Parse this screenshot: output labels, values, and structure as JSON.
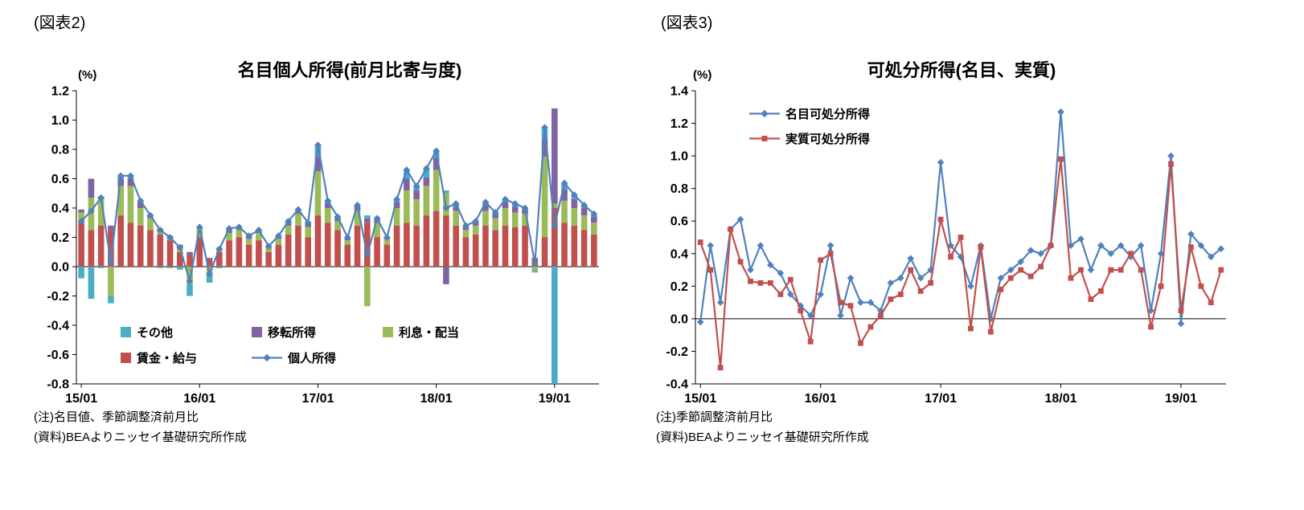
{
  "figure2": {
    "tag": "(図表2)",
    "title": "名目個人所得(前月比寄与度)",
    "unit": "(%)",
    "legend": {
      "row1": [
        {
          "id": "other",
          "label": "その他",
          "color": "#4BACC6",
          "marker": "square"
        },
        {
          "id": "transfer",
          "label": "移転所得",
          "color": "#8064A2",
          "marker": "square"
        },
        {
          "id": "interest-dividends",
          "label": "利息・配当",
          "color": "#9BBB59",
          "marker": "square"
        }
      ],
      "row2": [
        {
          "id": "wages",
          "label": "賃金・給与",
          "color": "#C0504D",
          "marker": "square"
        },
        {
          "id": "personal-income",
          "label": "個人所得",
          "color": "#4F81BD",
          "marker": "line-diamond"
        }
      ]
    },
    "notes": [
      "(注)名目値、季節調整済前月比",
      "(資料)BEAよりニッセイ基礎研究所作成"
    ]
  },
  "figure3": {
    "tag": "(図表3)",
    "title": "可処分所得(名目、実質)",
    "unit": "(%)",
    "legend": [
      {
        "id": "nominal-disposable-income",
        "label": "名目可処分所得",
        "color": "#4F81BD",
        "marker": "line-diamond"
      },
      {
        "id": "real-disposable-income",
        "label": "実質可処分所得",
        "color": "#C0504D",
        "marker": "line-square"
      }
    ],
    "notes": [
      "(注)季節調整済前月比",
      "(資料)BEAよりニッセイ基礎研究所作成"
    ]
  },
  "chart_data": [
    {
      "type": "bar",
      "subtype": "stacked-bars-with-line",
      "title": "名目個人所得(前月比寄与度)",
      "ylabel": "(%)",
      "ylim": [
        -0.8,
        1.2
      ],
      "ytick_step": 0.2,
      "grid": false,
      "legend_position": "inside-bottom-left",
      "categories": [
        "15/01",
        "15/02",
        "15/03",
        "15/04",
        "15/05",
        "15/06",
        "15/07",
        "15/08",
        "15/09",
        "15/10",
        "15/11",
        "15/12",
        "16/01",
        "16/02",
        "16/03",
        "16/04",
        "16/05",
        "16/06",
        "16/07",
        "16/08",
        "16/09",
        "16/10",
        "16/11",
        "16/12",
        "17/01",
        "17/02",
        "17/03",
        "17/04",
        "17/05",
        "17/06",
        "17/07",
        "17/08",
        "17/09",
        "17/10",
        "17/11",
        "17/12",
        "18/01",
        "18/02",
        "18/03",
        "18/04",
        "18/05",
        "18/06",
        "18/07",
        "18/08",
        "18/09",
        "18/10",
        "18/11",
        "18/12",
        "19/01",
        "19/02",
        "19/03",
        "19/04",
        "19/05"
      ],
      "xticks": [
        "15/01",
        "16/01",
        "17/01",
        "18/01",
        "19/01"
      ],
      "series": [
        {
          "name": "賃金・給与",
          "type": "bar",
          "color": "#C0504D",
          "values": [
            0.3,
            0.25,
            0.28,
            0.25,
            0.35,
            0.3,
            0.28,
            0.25,
            0.22,
            0.18,
            0.1,
            0.08,
            0.2,
            0.05,
            0.1,
            0.18,
            0.2,
            0.15,
            0.18,
            0.1,
            0.15,
            0.22,
            0.28,
            0.2,
            0.35,
            0.3,
            0.25,
            0.15,
            0.28,
            0.3,
            0.2,
            0.15,
            0.28,
            0.3,
            0.28,
            0.35,
            0.38,
            0.35,
            0.28,
            0.2,
            0.22,
            0.28,
            0.25,
            0.28,
            0.27,
            0.28,
            0.05,
            0.2,
            0.4,
            0.3,
            0.28,
            0.25,
            0.22
          ]
        },
        {
          "name": "利息・配当",
          "type": "bar",
          "color": "#9BBB59",
          "values": [
            0.07,
            0.22,
            0.18,
            -0.2,
            0.2,
            0.25,
            0.12,
            0.08,
            0.02,
            0.01,
            0.03,
            -0.12,
            0.06,
            -0.05,
            0.02,
            0.05,
            0.05,
            0.04,
            0.05,
            0.03,
            0.04,
            0.06,
            0.08,
            0.07,
            0.3,
            0.1,
            0.06,
            0.03,
            0.1,
            -0.27,
            0.1,
            0.04,
            0.12,
            0.22,
            0.18,
            0.2,
            0.28,
            0.15,
            0.1,
            0.05,
            0.06,
            0.1,
            0.08,
            0.12,
            0.1,
            0.08,
            -0.03,
            0.55,
            0.03,
            0.15,
            0.12,
            0.1,
            0.08
          ]
        },
        {
          "name": "移転所得",
          "type": "bar",
          "color": "#8064A2",
          "values": [
            0.02,
            0.13,
            0.02,
            0.03,
            0.05,
            0.05,
            0.04,
            0.02,
            0.02,
            0.02,
            0.02,
            0.02,
            0.01,
            0.01,
            0.01,
            0.02,
            0.01,
            0.02,
            0.01,
            0.01,
            0.01,
            0.02,
            0.02,
            0.02,
            0.1,
            0.03,
            0.02,
            0.01,
            0.03,
            0.03,
            0.02,
            0.01,
            0.04,
            0.08,
            0.06,
            0.06,
            0.08,
            -0.12,
            0.03,
            0.02,
            0.02,
            0.04,
            0.03,
            0.04,
            0.04,
            0.03,
            0.01,
            0.12,
            0.65,
            0.08,
            0.06,
            0.05,
            0.04
          ]
        },
        {
          "name": "その他",
          "type": "bar",
          "color": "#4BACC6",
          "values": [
            -0.08,
            -0.22,
            -0.01,
            -0.05,
            0.02,
            0.02,
            0.01,
            0.0,
            -0.01,
            -0.01,
            -0.02,
            -0.08,
            0.0,
            -0.06,
            -0.01,
            0.01,
            0.01,
            0.0,
            0.01,
            0.0,
            0.01,
            0.01,
            0.01,
            0.01,
            0.08,
            0.02,
            0.01,
            0.01,
            0.01,
            0.02,
            0.01,
            0.0,
            0.02,
            0.06,
            0.03,
            0.06,
            0.05,
            0.02,
            0.02,
            0.01,
            0.01,
            0.02,
            0.01,
            0.02,
            0.02,
            0.01,
            -0.01,
            0.08,
            -0.8,
            0.04,
            0.03,
            0.02,
            0.02
          ]
        },
        {
          "name": "個人所得",
          "type": "line",
          "color": "#4F81BD",
          "marker": "diamond",
          "values": [
            0.31,
            0.38,
            0.47,
            0.03,
            0.62,
            0.62,
            0.45,
            0.35,
            0.25,
            0.2,
            0.13,
            -0.1,
            0.27,
            -0.05,
            0.12,
            0.26,
            0.27,
            0.21,
            0.25,
            0.14,
            0.21,
            0.31,
            0.39,
            0.3,
            0.83,
            0.45,
            0.34,
            0.2,
            0.42,
            0.08,
            0.33,
            0.2,
            0.46,
            0.66,
            0.55,
            0.67,
            0.79,
            0.4,
            0.43,
            0.28,
            0.31,
            0.44,
            0.37,
            0.46,
            0.43,
            0.4,
            0.02,
            0.95,
            0.28,
            0.57,
            0.49,
            0.42,
            0.36
          ]
        }
      ]
    },
    {
      "type": "line",
      "title": "可処分所得(名目、実質)",
      "ylabel": "(%)",
      "ylim": [
        -0.4,
        1.4
      ],
      "ytick_step": 0.2,
      "grid": false,
      "legend_position": "inside-top-left",
      "categories": [
        "15/01",
        "15/02",
        "15/03",
        "15/04",
        "15/05",
        "15/06",
        "15/07",
        "15/08",
        "15/09",
        "15/10",
        "15/11",
        "15/12",
        "16/01",
        "16/02",
        "16/03",
        "16/04",
        "16/05",
        "16/06",
        "16/07",
        "16/08",
        "16/09",
        "16/10",
        "16/11",
        "16/12",
        "17/01",
        "17/02",
        "17/03",
        "17/04",
        "17/05",
        "17/06",
        "17/07",
        "17/08",
        "17/09",
        "17/10",
        "17/11",
        "17/12",
        "18/01",
        "18/02",
        "18/03",
        "18/04",
        "18/05",
        "18/06",
        "18/07",
        "18/08",
        "18/09",
        "18/10",
        "18/11",
        "18/12",
        "19/01",
        "19/02",
        "19/03",
        "19/04",
        "19/05"
      ],
      "xticks": [
        "15/01",
        "16/01",
        "17/01",
        "18/01",
        "19/01"
      ],
      "series": [
        {
          "name": "名目可処分所得",
          "color": "#4F81BD",
          "marker": "diamond",
          "values": [
            -0.02,
            0.45,
            0.1,
            0.55,
            0.61,
            0.3,
            0.45,
            0.33,
            0.28,
            0.15,
            0.08,
            0.02,
            0.15,
            0.45,
            0.02,
            0.25,
            0.1,
            0.1,
            0.05,
            0.22,
            0.25,
            0.37,
            0.25,
            0.3,
            0.96,
            0.45,
            0.38,
            0.2,
            0.45,
            0.0,
            0.25,
            0.3,
            0.35,
            0.42,
            0.4,
            0.45,
            1.27,
            0.45,
            0.49,
            0.3,
            0.45,
            0.4,
            0.45,
            0.38,
            0.45,
            0.05,
            0.4,
            1.0,
            -0.03,
            0.52,
            0.45,
            0.38,
            0.43
          ]
        },
        {
          "name": "実質可処分所得",
          "color": "#C0504D",
          "marker": "square",
          "values": [
            0.47,
            0.3,
            -0.3,
            0.55,
            0.35,
            0.23,
            0.22,
            0.22,
            0.15,
            0.24,
            0.05,
            -0.14,
            0.36,
            0.4,
            0.1,
            0.08,
            -0.15,
            -0.05,
            0.02,
            0.12,
            0.15,
            0.3,
            0.17,
            0.22,
            0.61,
            0.38,
            0.5,
            -0.06,
            0.44,
            -0.08,
            0.18,
            0.25,
            0.3,
            0.26,
            0.32,
            0.45,
            0.98,
            0.25,
            0.3,
            0.12,
            0.17,
            0.3,
            0.3,
            0.4,
            0.3,
            -0.05,
            0.2,
            0.95,
            0.05,
            0.44,
            0.2,
            0.1,
            0.3
          ]
        }
      ]
    }
  ]
}
